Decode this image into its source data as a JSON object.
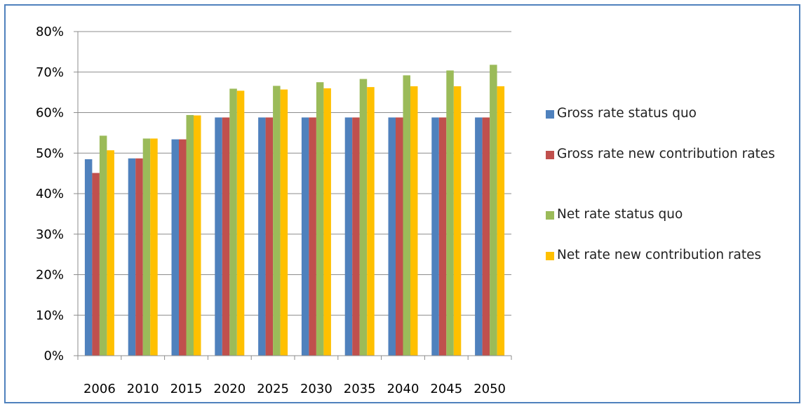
{
  "chart_data": {
    "type": "bar",
    "categories": [
      "2006",
      "2010",
      "2015",
      "2020",
      "2025",
      "2030",
      "2035",
      "2040",
      "2045",
      "2050"
    ],
    "series": [
      {
        "name": "Gross rate status quo",
        "color": "#4f81bd",
        "values": [
          48.5,
          48.7,
          53.4,
          58.8,
          58.8,
          58.8,
          58.8,
          58.8,
          58.8,
          58.8
        ]
      },
      {
        "name": "Gross rate new contribution rates",
        "color": "#c0504d",
        "values": [
          45.1,
          48.7,
          53.4,
          58.8,
          58.8,
          58.8,
          58.8,
          58.8,
          58.8,
          58.8
        ]
      },
      {
        "name": "Net rate status quo",
        "color": "#9bbb59",
        "values": [
          54.3,
          53.6,
          59.4,
          65.9,
          66.6,
          67.5,
          68.3,
          69.2,
          70.4,
          71.8
        ]
      },
      {
        "name": "Net rate new contribution rates",
        "color": "#ffc000",
        "values": [
          50.7,
          53.6,
          59.3,
          65.4,
          65.7,
          66.0,
          66.3,
          66.5,
          66.5,
          66.5
        ]
      }
    ],
    "yticks": [
      "0%",
      "10%",
      "20%",
      "30%",
      "40%",
      "50%",
      "60%",
      "70%",
      "80%"
    ],
    "ylim": [
      0,
      80
    ],
    "grid": true,
    "legend_position": "right",
    "title": "",
    "xlabel": "",
    "ylabel": ""
  }
}
